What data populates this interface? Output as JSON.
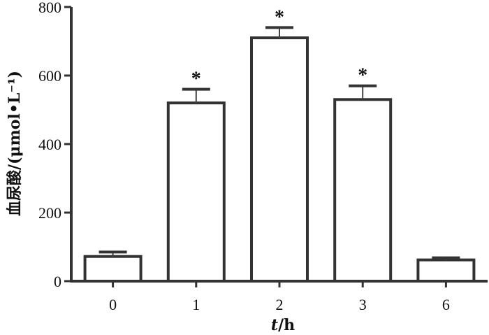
{
  "chart_data": {
    "type": "bar",
    "categories": [
      "0",
      "1",
      "2",
      "3",
      "6"
    ],
    "values": [
      72,
      520,
      710,
      530,
      62
    ],
    "error_upper": [
      85,
      560,
      740,
      570,
      68
    ],
    "significance": [
      "",
      "*",
      "*",
      "*",
      ""
    ],
    "xlabel_italic": "t",
    "xlabel_rest": "/h",
    "ylabel": "血尿酸/(μmol•L⁻¹)",
    "ylim": [
      0,
      800
    ],
    "yticks": [
      0,
      200,
      400,
      600,
      800
    ],
    "grid": false,
    "bar_fill": "#ffffff",
    "bar_stroke": "#333333"
  }
}
